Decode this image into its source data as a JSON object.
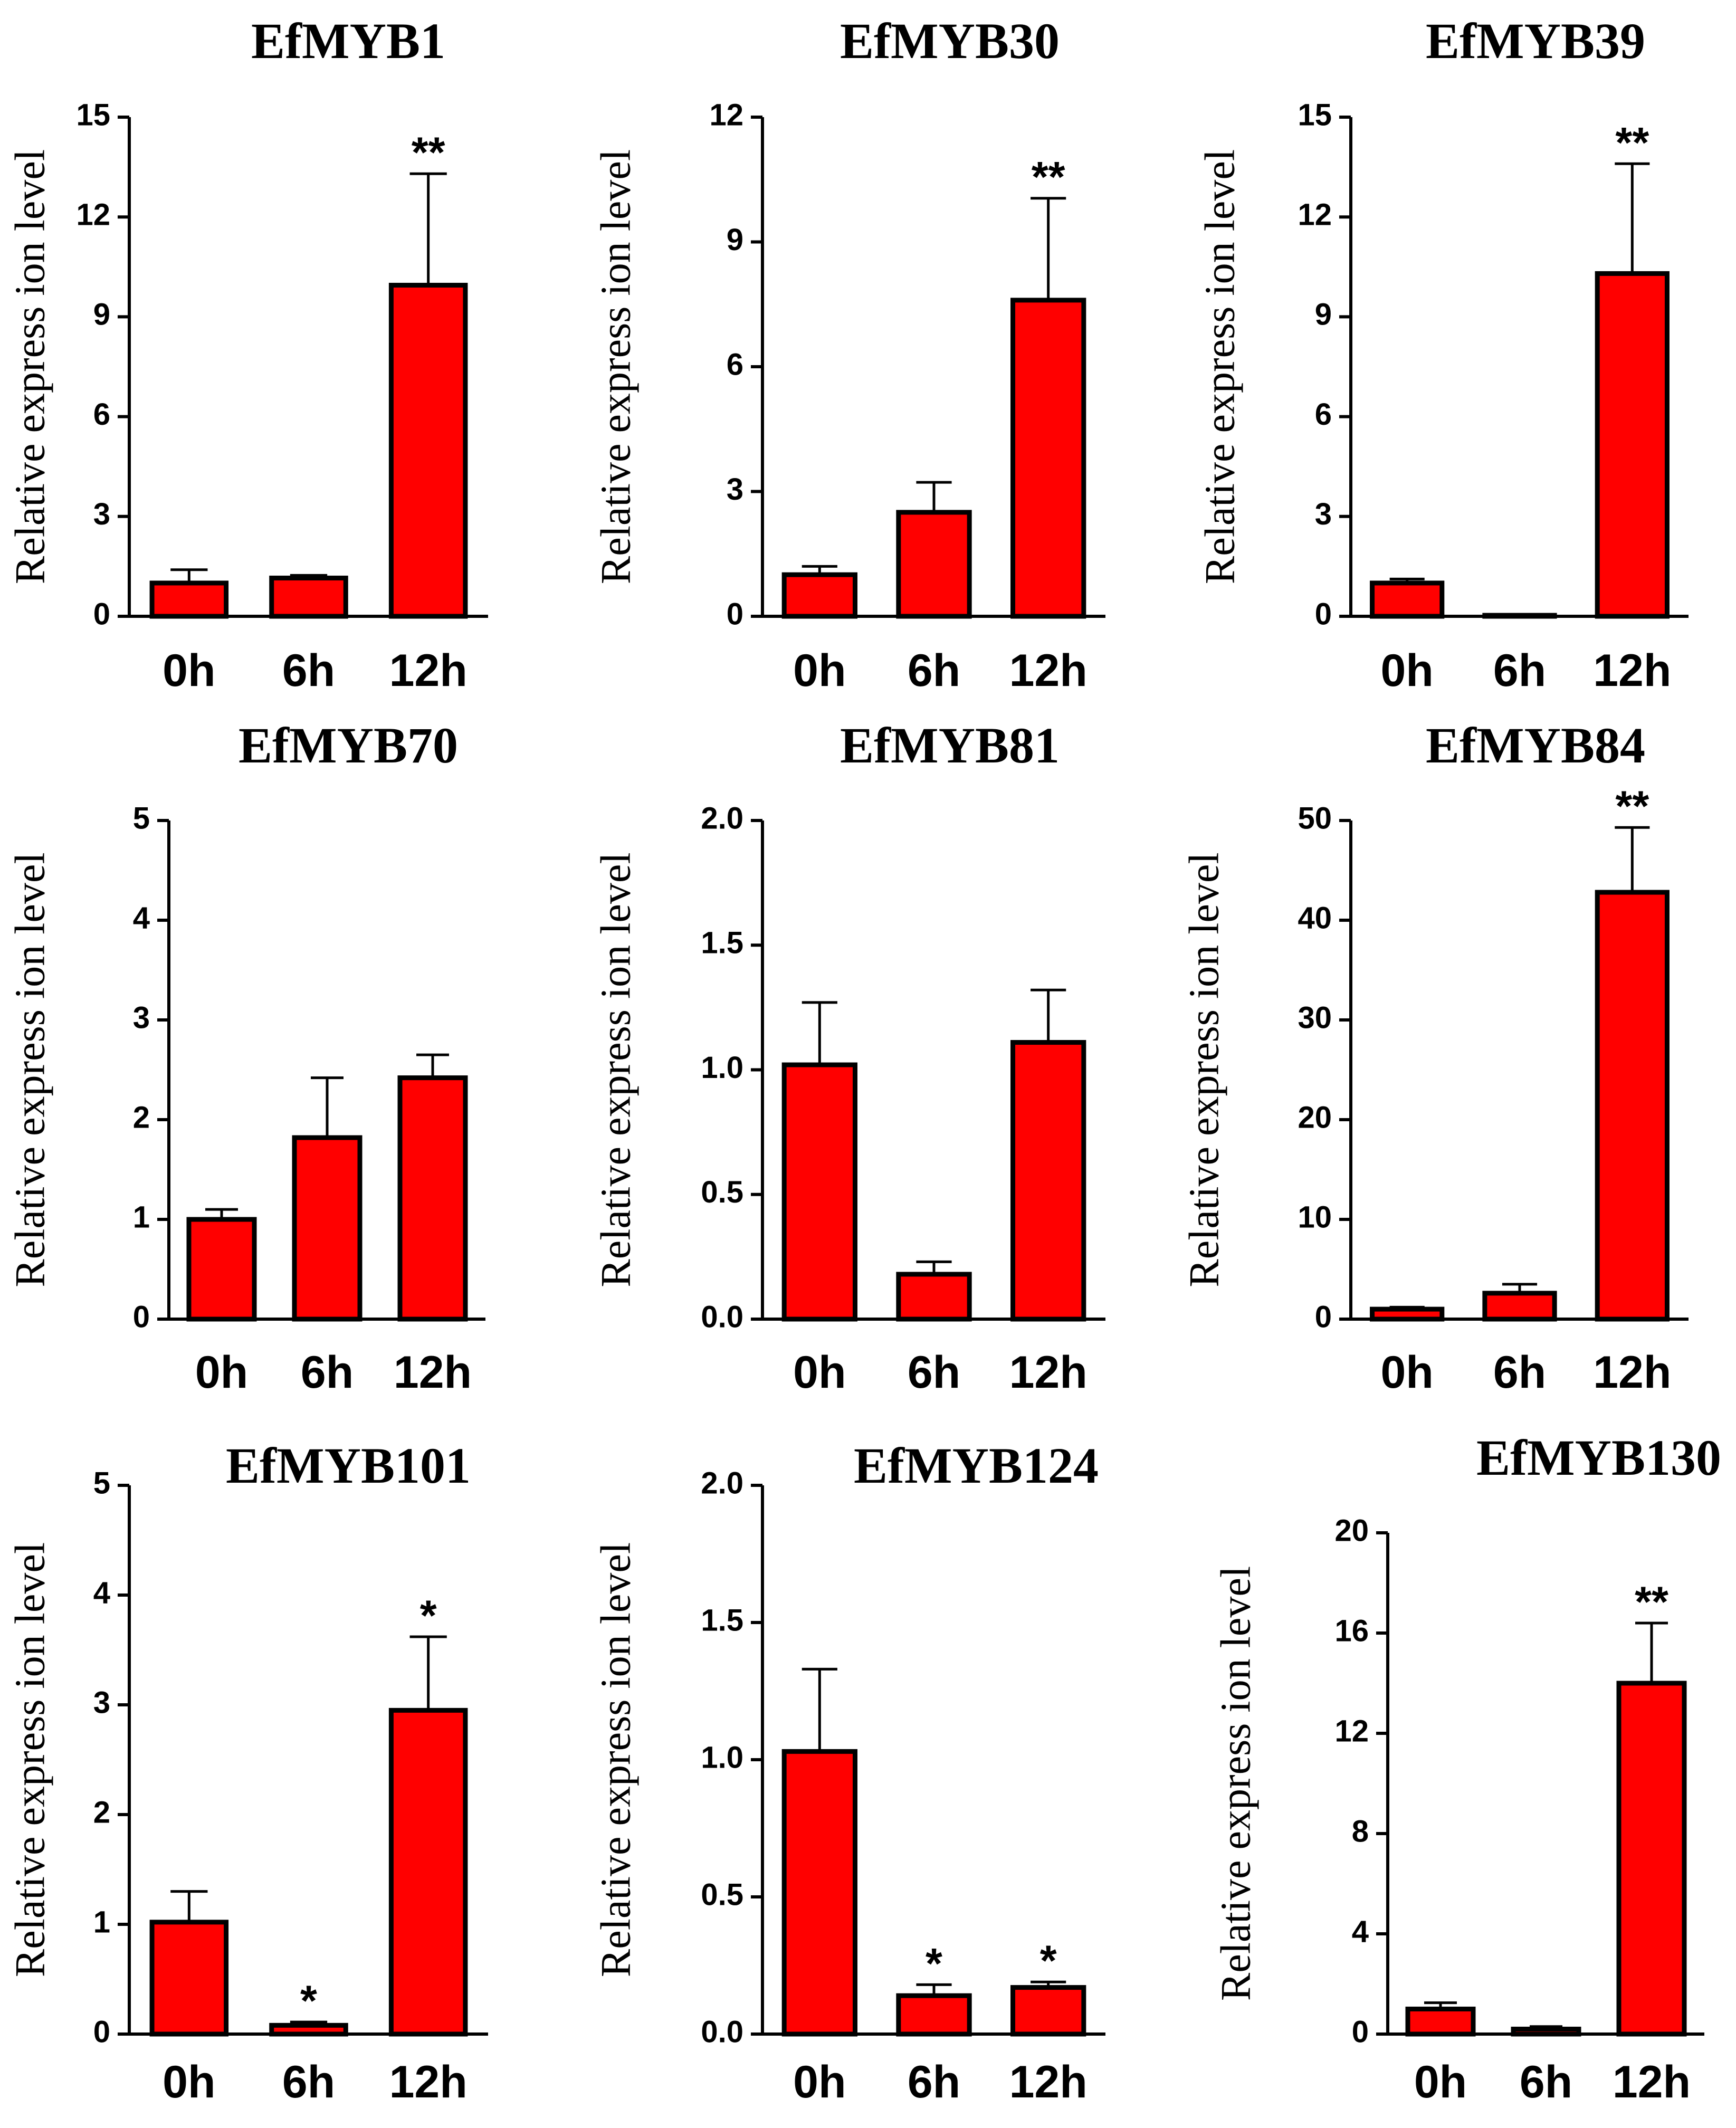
{
  "chart_data": [
    {
      "type": "bar",
      "title": "EfMYB1",
      "ylabel": "Relative express ion level",
      "xlabel": "",
      "categories": [
        "0h",
        "6h",
        "12h"
      ],
      "values": [
        1.0,
        1.15,
        9.95
      ],
      "errors": [
        0.4,
        0.08,
        3.35
      ],
      "significance": [
        "",
        "",
        "**"
      ],
      "ylim": [
        0,
        15
      ],
      "yticks": [
        0,
        3,
        6,
        9,
        12,
        15
      ],
      "ytick_labels": [
        "0",
        "3",
        "6",
        "9",
        "12",
        "15"
      ],
      "bar_color": "#ff0000"
    },
    {
      "type": "bar",
      "title": "EfMYB30",
      "ylabel": "Relative express ion level",
      "xlabel": "",
      "categories": [
        "0h",
        "6h",
        "12h"
      ],
      "values": [
        1.0,
        2.5,
        7.6
      ],
      "errors": [
        0.2,
        0.72,
        2.45
      ],
      "significance": [
        "",
        "",
        "**"
      ],
      "ylim": [
        0,
        12
      ],
      "yticks": [
        0,
        3,
        6,
        9,
        12
      ],
      "ytick_labels": [
        "0",
        "3",
        "6",
        "9",
        "12"
      ],
      "bar_color": "#ff0000"
    },
    {
      "type": "bar",
      "title": "EfMYB39",
      "ylabel": "Relative express ion level",
      "xlabel": "",
      "categories": [
        "0h",
        "6h",
        "12h"
      ],
      "values": [
        1.0,
        0.03,
        10.3
      ],
      "errors": [
        0.12,
        0.01,
        3.3
      ],
      "significance": [
        "",
        "",
        "**"
      ],
      "ylim": [
        0,
        15
      ],
      "yticks": [
        0,
        3,
        6,
        9,
        12,
        15
      ],
      "ytick_labels": [
        "0",
        "3",
        "6",
        "9",
        "12",
        "15"
      ],
      "bar_color": "#ff0000"
    },
    {
      "type": "bar",
      "title": "EfMYB70",
      "ylabel": "Relative express ion level",
      "xlabel": "",
      "categories": [
        "0h",
        "6h",
        "12h"
      ],
      "values": [
        1.0,
        1.82,
        2.42
      ],
      "errors": [
        0.1,
        0.6,
        0.23
      ],
      "significance": [
        "",
        "",
        ""
      ],
      "ylim": [
        0,
        5
      ],
      "yticks": [
        0,
        1,
        2,
        3,
        4,
        5
      ],
      "ytick_labels": [
        "0",
        "1",
        "2",
        "3",
        "4",
        "5"
      ],
      "bar_color": "#ff0000"
    },
    {
      "type": "bar",
      "title": "EfMYB81",
      "ylabel": "Relative express ion level",
      "xlabel": "",
      "categories": [
        "0h",
        "6h",
        "12h"
      ],
      "values": [
        1.02,
        0.18,
        1.11
      ],
      "errors": [
        0.25,
        0.05,
        0.21
      ],
      "significance": [
        "",
        "",
        ""
      ],
      "ylim": [
        0,
        2.0
      ],
      "yticks": [
        0,
        0.5,
        1.0,
        1.5,
        2.0
      ],
      "ytick_labels": [
        "0.0",
        "0.5",
        "1.0",
        "1.5",
        "2.0"
      ],
      "bar_color": "#ff0000"
    },
    {
      "type": "bar",
      "title": "EfMYB84",
      "ylabel": "Relative express ion level",
      "xlabel": "",
      "categories": [
        "0h",
        "6h",
        "12h"
      ],
      "values": [
        1.0,
        2.6,
        42.8
      ],
      "errors": [
        0.2,
        0.9,
        6.5
      ],
      "significance": [
        "",
        "",
        "**"
      ],
      "ylim": [
        0,
        50
      ],
      "yticks": [
        0,
        10,
        20,
        30,
        40,
        50
      ],
      "ytick_labels": [
        "0",
        "10",
        "20",
        "30",
        "40",
        "50"
      ],
      "bar_color": "#ff0000"
    },
    {
      "type": "bar",
      "title": "EfMYB101",
      "ylabel": "Relative express ion level",
      "xlabel": "",
      "categories": [
        "0h",
        "6h",
        "12h"
      ],
      "values": [
        1.02,
        0.08,
        2.95
      ],
      "errors": [
        0.28,
        0.03,
        0.67
      ],
      "significance": [
        "",
        "*",
        "*"
      ],
      "ylim": [
        0,
        5
      ],
      "yticks": [
        0,
        1,
        2,
        3,
        4,
        5
      ],
      "ytick_labels": [
        "0",
        "1",
        "2",
        "3",
        "4",
        "5"
      ],
      "bar_color": "#ff0000"
    },
    {
      "type": "bar",
      "title": "EfMYB124",
      "ylabel": "Relative express ion level",
      "xlabel": "",
      "categories": [
        "0h",
        "6h",
        "12h"
      ],
      "values": [
        1.03,
        0.14,
        0.17
      ],
      "errors": [
        0.3,
        0.04,
        0.02
      ],
      "significance": [
        "",
        "*",
        "*"
      ],
      "ylim": [
        0,
        2.0
      ],
      "yticks": [
        0,
        0.5,
        1.0,
        1.5,
        2.0
      ],
      "ytick_labels": [
        "0.0",
        "0.5",
        "1.0",
        "1.5",
        "2.0"
      ],
      "bar_color": "#ff0000"
    },
    {
      "type": "bar",
      "title": "EfMYB130",
      "ylabel": "Relative express ion level",
      "xlabel": "",
      "categories": [
        "0h",
        "6h",
        "12h"
      ],
      "values": [
        1.0,
        0.2,
        14.0
      ],
      "errors": [
        0.25,
        0.1,
        2.4
      ],
      "significance": [
        "",
        "",
        "**"
      ],
      "ylim": [
        0,
        20
      ],
      "yticks": [
        0,
        4,
        8,
        12,
        16,
        20
      ],
      "ytick_labels": [
        "0",
        "4",
        "8",
        "12",
        "16",
        "20"
      ],
      "bar_color": "#ff0000"
    }
  ]
}
